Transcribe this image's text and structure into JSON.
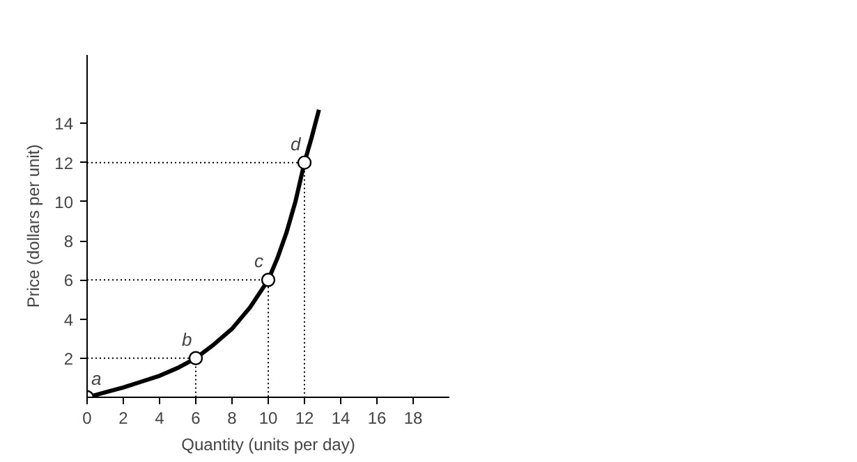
{
  "chart_data": {
    "type": "line",
    "xlabel": "Quantity (units per day)",
    "ylabel": "Price (dollars per unit)",
    "xlim": [
      0,
      20
    ],
    "ylim": [
      0,
      17.5
    ],
    "xticks": [
      0,
      2,
      4,
      6,
      8,
      10,
      12,
      14,
      16,
      18
    ],
    "yticks": [
      2,
      4,
      6,
      8,
      10,
      12,
      14
    ],
    "grid": false,
    "series": [
      {
        "line_style": "dotted",
        "color": "#000000",
        "x": [
          0,
          6,
          6
        ],
        "values": [
          2,
          2,
          0
        ]
      },
      {
        "line_style": "dotted",
        "color": "#000000",
        "x": [
          0,
          10,
          10
        ],
        "values": [
          6,
          6,
          0
        ]
      },
      {
        "line_style": "dotted",
        "color": "#000000",
        "x": [
          0,
          12,
          12
        ],
        "values": [
          12,
          12,
          0
        ]
      },
      {
        "line_style": "solid",
        "color": "#000000",
        "x": [
          0,
          1,
          2,
          3,
          4,
          5,
          6,
          7,
          8,
          9,
          10,
          10.5,
          11,
          11.5,
          12,
          12.4,
          12.8
        ],
        "values": [
          0,
          0.25,
          0.5,
          0.8,
          1.1,
          1.5,
          2,
          2.7,
          3.5,
          4.6,
          6,
          7.1,
          8.4,
          10,
          12,
          13.3,
          14.7
        ]
      },
      {
        "type": "scatter",
        "marker": "circle",
        "color": "#000000",
        "x": [
          0,
          6,
          10,
          12
        ],
        "values": [
          0,
          2,
          6,
          12
        ]
      }
    ],
    "annotations": [
      {
        "text": "a",
        "x": 0,
        "y": 0
      },
      {
        "text": "b",
        "x": 6,
        "y": 2
      },
      {
        "text": "c",
        "x": 10,
        "y": 6
      },
      {
        "text": "d",
        "x": 12,
        "y": 12
      }
    ]
  }
}
